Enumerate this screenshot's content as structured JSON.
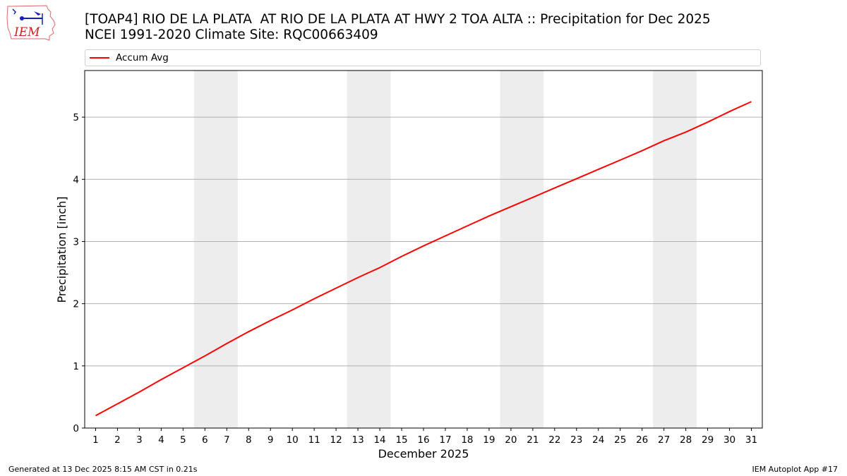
{
  "header": {
    "logo_text": "IEM",
    "title_line1": "[TOAP4] RIO DE LA PLATA  AT RIO DE LA PLATA AT HWY 2 TOA ALTA :: Precipitation for Dec 2025",
    "title_line2": "NCEI 1991-2020 Climate Site: RQC00663409"
  },
  "legend": {
    "items": [
      {
        "label": "Accum Avg",
        "color": "#ff0000"
      }
    ]
  },
  "footer": {
    "generated": "Generated at 13 Dec 2025 8:15 AM CST in 0.21s",
    "app": "IEM Autoplot App #17"
  },
  "colors": {
    "line": "#ff0000",
    "weekend_shade": "#ededed",
    "grid": "#b0b0b0"
  },
  "chart_data": {
    "type": "line",
    "title": "[TOAP4] RIO DE LA PLATA  AT RIO DE LA PLATA AT HWY 2 TOA ALTA :: Precipitation for Dec 2025",
    "subtitle": "NCEI 1991-2020 Climate Site: RQC00663409",
    "xlabel": "December 2025",
    "ylabel": "Precipitation [inch]",
    "x": [
      1,
      2,
      3,
      4,
      5,
      6,
      7,
      8,
      9,
      10,
      11,
      12,
      13,
      14,
      15,
      16,
      17,
      18,
      19,
      20,
      21,
      22,
      23,
      24,
      25,
      26,
      27,
      28,
      29,
      30,
      31
    ],
    "series": [
      {
        "name": "Accum Avg",
        "color": "#ff0000",
        "values": [
          0.2,
          0.39,
          0.58,
          0.78,
          0.97,
          1.16,
          1.36,
          1.55,
          1.73,
          1.9,
          2.08,
          2.25,
          2.42,
          2.58,
          2.76,
          2.93,
          3.09,
          3.25,
          3.41,
          3.56,
          3.71,
          3.86,
          4.01,
          4.16,
          4.31,
          4.46,
          4.62,
          4.76,
          4.92,
          5.09,
          5.25
        ]
      }
    ],
    "xlim": [
      0.5,
      31.5
    ],
    "ylim": [
      0,
      5.75
    ],
    "xticks": [
      1,
      2,
      3,
      4,
      5,
      6,
      7,
      8,
      9,
      10,
      11,
      12,
      13,
      14,
      15,
      16,
      17,
      18,
      19,
      20,
      21,
      22,
      23,
      24,
      25,
      26,
      27,
      28,
      29,
      30,
      31
    ],
    "yticks": [
      0,
      1,
      2,
      3,
      4,
      5
    ],
    "grid": "y",
    "legend_position": "top",
    "shaded_spans": [
      [
        5.5,
        7.5
      ],
      [
        12.5,
        14.5
      ],
      [
        19.5,
        21.5
      ],
      [
        26.5,
        28.5
      ]
    ]
  }
}
